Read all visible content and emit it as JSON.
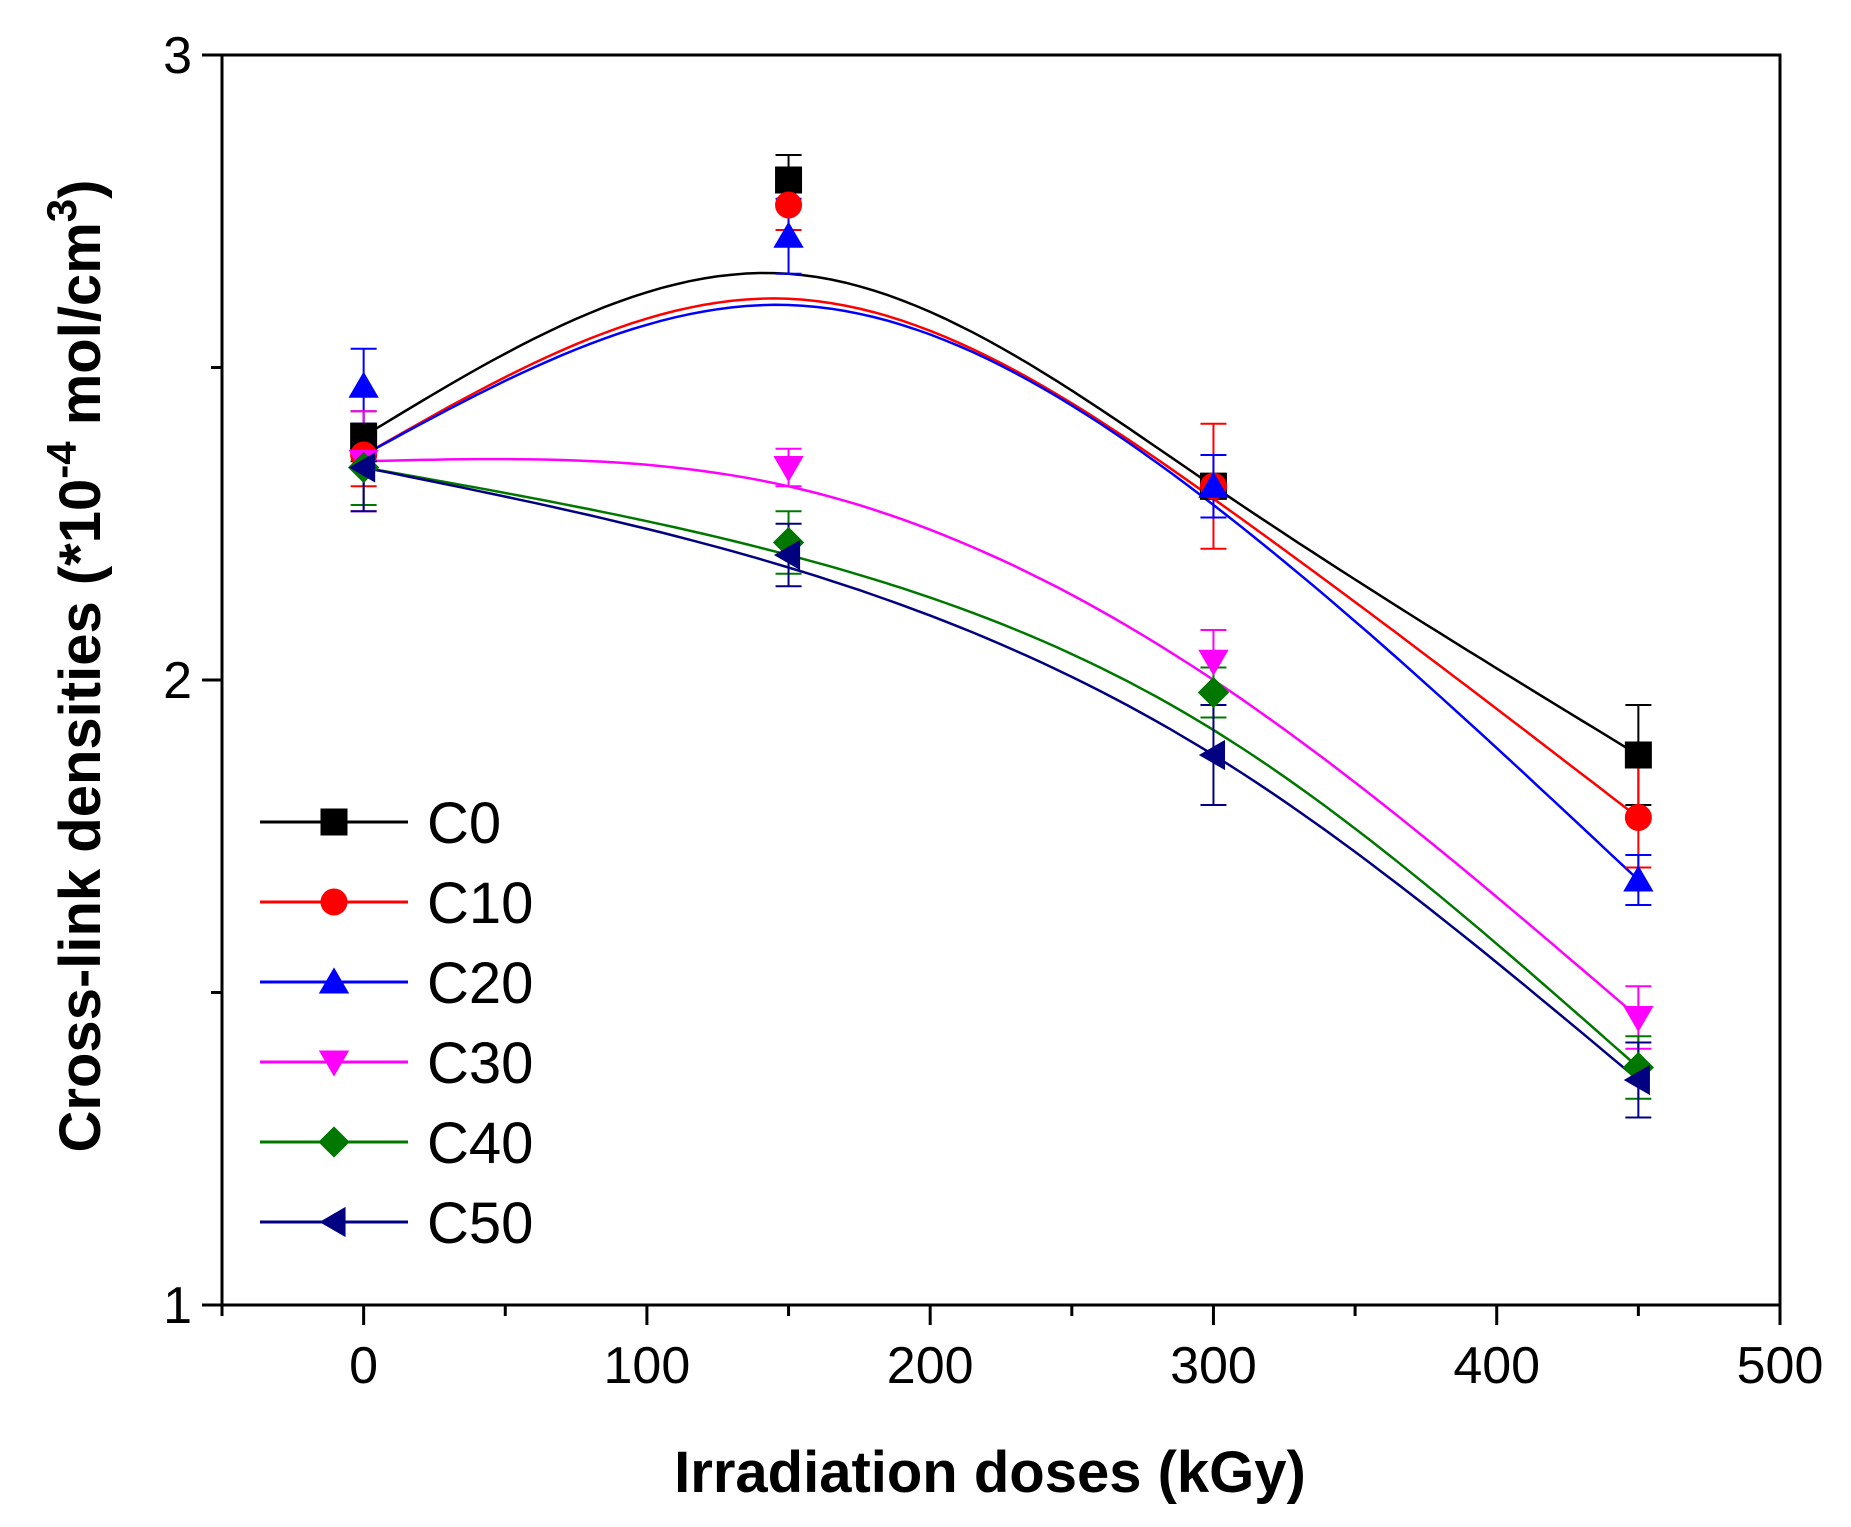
{
  "chart_data": {
    "type": "scatter",
    "title": "",
    "xlabel": "Irradiation doses (kGy)",
    "ylabel": {
      "prefix": "Cross-link densities (*10",
      "exp": "-4",
      "middle": " mol/cm",
      "exp2": "3",
      "suffix": ")"
    },
    "xlim": [
      -50,
      500
    ],
    "ylim": [
      1,
      3
    ],
    "x_ticks": [
      0,
      100,
      200,
      300,
      400,
      500
    ],
    "x_tick_labels": [
      "0",
      "100",
      "200",
      "300",
      "400",
      "500"
    ],
    "x_minor_ticks": [
      -50,
      50,
      150,
      250,
      350,
      450
    ],
    "y_ticks": [
      1,
      2,
      3
    ],
    "y_tick_labels": [
      "1",
      "2",
      "3"
    ],
    "y_minor_ticks": [
      1.5,
      2.5
    ],
    "grid": false,
    "legend_position": "bottom-left",
    "x": [
      0,
      150,
      300,
      450
    ],
    "series": [
      {
        "name": "C0",
        "color": "#000000",
        "marker": "square",
        "values": [
          2.39,
          2.8,
          2.31,
          1.88
        ],
        "errors": [
          0.04,
          0.04,
          0.02,
          0.08
        ],
        "fit": [
          2.39,
          2.65,
          2.31,
          1.88
        ]
      },
      {
        "name": "C10",
        "color": "#ff0000",
        "marker": "circle",
        "values": [
          2.36,
          2.76,
          2.31,
          1.78
        ],
        "errors": [
          0.05,
          0.04,
          0.1,
          0.08
        ],
        "fit": [
          2.36,
          2.61,
          2.29,
          1.78
        ]
      },
      {
        "name": "C20",
        "color": "#0000ff",
        "marker": "triangle-up",
        "values": [
          2.47,
          2.71,
          2.31,
          1.68
        ],
        "errors": [
          0.06,
          0.06,
          0.05,
          0.04
        ],
        "fit": [
          2.36,
          2.6,
          2.28,
          1.68
        ]
      },
      {
        "name": "C30",
        "color": "#ff00ff",
        "marker": "triangle-down",
        "values": [
          2.35,
          2.34,
          2.03,
          1.46
        ],
        "errors": [
          0.08,
          0.03,
          0.05,
          0.05
        ],
        "fit": [
          2.35,
          2.31,
          2.0,
          1.46
        ]
      },
      {
        "name": "C40",
        "color": "#007800",
        "marker": "diamond",
        "values": [
          2.34,
          2.22,
          1.98,
          1.38
        ],
        "errors": [
          0.06,
          0.05,
          0.04,
          0.05
        ],
        "fit": [
          2.34,
          2.2,
          1.92,
          1.38
        ]
      },
      {
        "name": "C50",
        "color": "#000080",
        "marker": "triangle-left",
        "values": [
          2.34,
          2.2,
          1.88,
          1.36
        ],
        "errors": [
          0.07,
          0.05,
          0.08,
          0.06
        ],
        "fit": [
          2.34,
          2.18,
          1.88,
          1.36
        ]
      }
    ]
  }
}
